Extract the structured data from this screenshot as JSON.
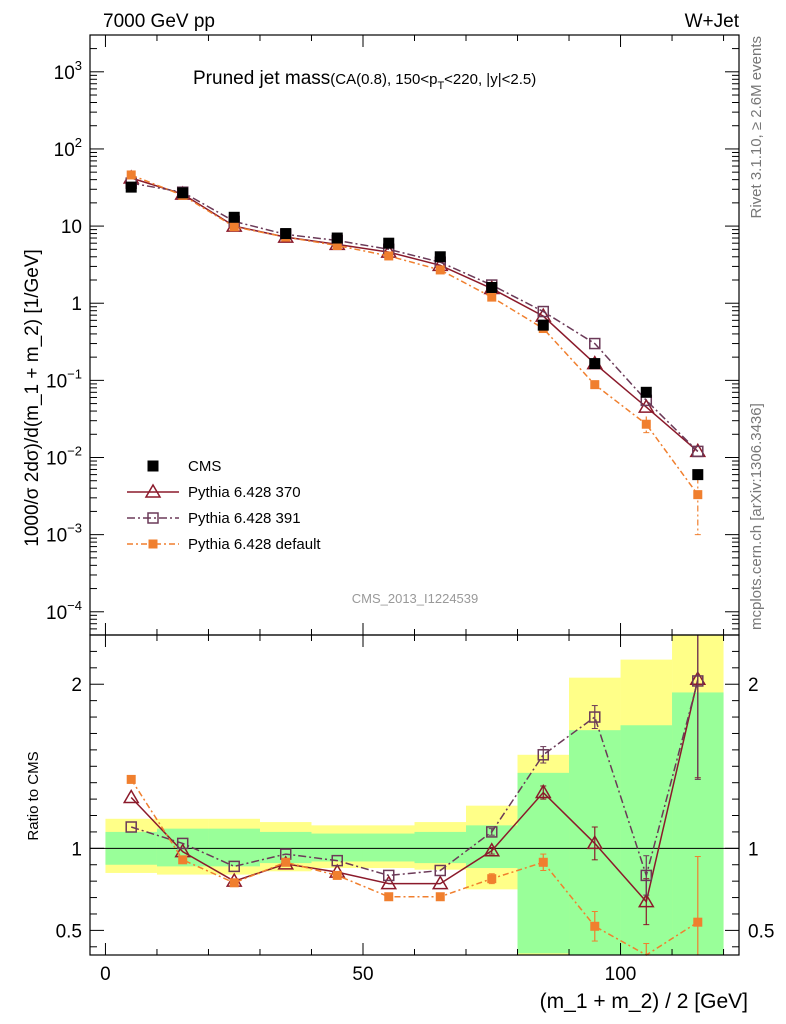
{
  "header": {
    "energy_label": "7000 GeV pp",
    "process_label": "W+Jet"
  },
  "plot_title": {
    "main": "Pruned jet mass",
    "cuts_prefix": "(CA(0.8), 150<p",
    "cuts_sub": "T",
    "cuts_suffix": "<220, |y|<2.5)"
  },
  "side_labels": {
    "rivet": "Rivet 3.1.10, ≥ 2.6M events",
    "source": "mcplots.cern.ch [arXiv:1306.3436]"
  },
  "watermark": "CMS_2013_I1224539",
  "chart_data": {
    "type": "scatter",
    "title": "Pruned jet mass (CA(0.8), 150<pT<220, |y|<2.5)",
    "main_panel": {
      "ylabel": "1000/σ 2dσ)/d(m_1 + m_2) [1/GeV]",
      "yscale": "log",
      "ylim": [
        5e-05,
        3000
      ],
      "y_ticks": [
        {
          "v": 0.0001,
          "m": "10",
          "e": "−4"
        },
        {
          "v": 0.001,
          "m": "10",
          "e": "−3"
        },
        {
          "v": 0.01,
          "m": "10",
          "e": "−2"
        },
        {
          "v": 0.1,
          "m": "10",
          "e": "−1"
        },
        {
          "v": 1,
          "m": "1",
          "e": ""
        },
        {
          "v": 10,
          "m": "10",
          "e": ""
        },
        {
          "v": 100,
          "m": "10",
          "e": "2"
        },
        {
          "v": 1000,
          "m": "10",
          "e": "3"
        }
      ]
    },
    "ratio_panel": {
      "ylabel": "Ratio to CMS",
      "ylim": [
        0.35,
        2.3
      ],
      "y_ticks": [
        {
          "v": 0.5,
          "label": "0.5"
        },
        {
          "v": 1,
          "label": "1"
        },
        {
          "v": 2,
          "label": "2"
        }
      ]
    },
    "xlabel": "(m_1 + m_2) / 2 [GeV]",
    "xlim": [
      -3,
      123
    ],
    "x_ticks": [
      {
        "v": 0,
        "label": "0"
      },
      {
        "v": 50,
        "label": "50"
      },
      {
        "v": 100,
        "label": "100"
      }
    ],
    "bin_edges": [
      0,
      10,
      20,
      30,
      40,
      50,
      60,
      70,
      80,
      90,
      100,
      110,
      120
    ],
    "x": [
      5,
      15,
      25,
      35,
      45,
      55,
      65,
      75,
      85,
      95,
      105,
      115
    ],
    "data": {
      "name": "CMS",
      "values": [
        32,
        27,
        13,
        8,
        7,
        6,
        4,
        1.6,
        0.52,
        0.165,
        0.07,
        0.006
      ],
      "band_inner": [
        [
          0.9,
          1.1
        ],
        [
          0.89,
          1.12
        ],
        [
          0.89,
          1.12
        ],
        [
          0.91,
          1.1
        ],
        [
          0.92,
          1.09
        ],
        [
          0.92,
          1.09
        ],
        [
          0.91,
          1.1
        ],
        [
          0.88,
          1.14
        ],
        [
          0.36,
          1.46
        ],
        [
          0.3,
          1.72
        ],
        [
          0.3,
          1.75
        ],
        [
          0.3,
          1.95
        ]
      ],
      "band_outer": [
        [
          0.85,
          1.18
        ],
        [
          0.84,
          1.18
        ],
        [
          0.84,
          1.18
        ],
        [
          0.86,
          1.16
        ],
        [
          0.88,
          1.14
        ],
        [
          0.88,
          1.14
        ],
        [
          0.87,
          1.16
        ],
        [
          0.75,
          1.26
        ],
        [
          0.3,
          1.57
        ],
        [
          0.3,
          2.04
        ],
        [
          0.3,
          2.15
        ],
        [
          0.3,
          2.3
        ]
      ]
    },
    "series": [
      {
        "name": "Pythia 6.428 370",
        "color": "#8b1a2b",
        "marker": "triangle-open",
        "dash": "",
        "values": [
          42,
          26,
          10,
          7.2,
          5.8,
          4.6,
          3.1,
          1.55,
          0.68,
          0.165,
          0.045,
          0.012
        ],
        "ratio": [
          1.31,
          0.98,
          0.8,
          0.905,
          0.855,
          0.785,
          0.785,
          0.985,
          1.34,
          1.03,
          0.675,
          2.03
        ],
        "ratio_err": [
          0,
          0,
          0,
          0,
          0,
          0,
          0,
          0.02,
          0.04,
          0.1,
          0.14,
          0.6
        ]
      },
      {
        "name": "Pythia 6.428 391",
        "color": "#6b3a58",
        "marker": "square-open",
        "dash": "8,3,2,3",
        "values": [
          36,
          27.5,
          11.5,
          7.8,
          6.5,
          5,
          3.4,
          1.72,
          0.78,
          0.3,
          0.055,
          0.012
        ],
        "ratio": [
          1.13,
          1.03,
          0.89,
          0.965,
          0.925,
          0.835,
          0.865,
          1.1,
          1.57,
          1.8,
          0.835,
          2.02
        ],
        "ratio_err": [
          0,
          0,
          0,
          0,
          0,
          0,
          0,
          0.02,
          0.05,
          0.07,
          0.12,
          0.6
        ]
      },
      {
        "name": "Pythia 6.428 default",
        "color": "#f07f2e",
        "marker": "square-filled",
        "dash": "6,3,2,3",
        "values": [
          46,
          25,
          9.8,
          7.2,
          5.6,
          4.1,
          2.7,
          1.2,
          0.47,
          0.088,
          0.027,
          0.0033
        ],
        "ratio": [
          1.42,
          0.93,
          0.79,
          0.915,
          0.835,
          0.705,
          0.705,
          0.815,
          0.915,
          0.525,
          0.34,
          0.55
        ],
        "ratio_err": [
          0,
          0,
          0,
          0,
          0,
          0,
          0,
          0.03,
          0.05,
          0.09,
          0.08,
          0.4
        ],
        "err_main": [
          0,
          0,
          0,
          0,
          0,
          0,
          0,
          0,
          0,
          0,
          [
            0.021,
            0.034
          ],
          [
            0.001,
            0.0055
          ]
        ]
      }
    ],
    "legend_position": "bottom-left"
  }
}
